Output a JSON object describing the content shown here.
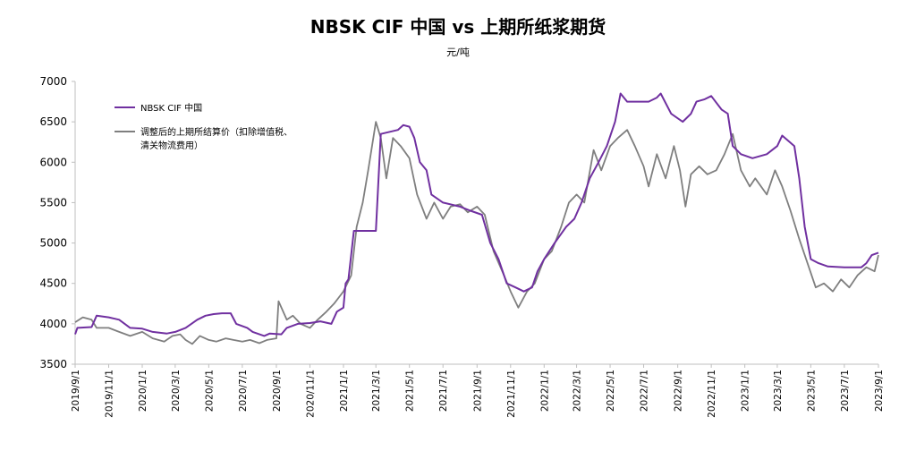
{
  "chart_data": {
    "type": "line",
    "title": "NBSK CIF 中国 vs 上期所纸浆期货",
    "unit": "元/吨",
    "ylim": [
      3500,
      7000
    ],
    "yticks": [
      "7000",
      "6500",
      "6000",
      "5500",
      "5000",
      "4500",
      "4000",
      "3500"
    ],
    "xticks": [
      "2019/9/1",
      "2019/11/1",
      "2020/1/1",
      "2020/3/1",
      "2020/5/1",
      "2020/7/1",
      "2020/9/1",
      "2020/11/1",
      "2021/1/1",
      "2021/3/1",
      "2021/5/1",
      "2021/7/1",
      "2021/9/1",
      "2021/11/1",
      "2022/1/1",
      "2022/3/1",
      "2022/5/1",
      "2022/7/1",
      "2022/9/1",
      "2022/11/1",
      "2023/1/1",
      "2023/3/1",
      "2023/5/1",
      "2023/7/1",
      "2023/9/1"
    ],
    "legend_position": "top-left",
    "series": [
      {
        "name": "NBSK CIF 中国",
        "color": "#7030A0",
        "points": [
          [
            "2019/9/1",
            3870
          ],
          [
            "2019/9/5",
            3950
          ],
          [
            "2019/10/1",
            3960
          ],
          [
            "2019/10/10",
            4100
          ],
          [
            "2019/11/1",
            4080
          ],
          [
            "2019/11/20",
            4050
          ],
          [
            "2019/12/10",
            3950
          ],
          [
            "2020/1/1",
            3940
          ],
          [
            "2020/1/20",
            3900
          ],
          [
            "2020/2/15",
            3880
          ],
          [
            "2020/3/1",
            3900
          ],
          [
            "2020/3/20",
            3950
          ],
          [
            "2020/4/10",
            4050
          ],
          [
            "2020/4/25",
            4100
          ],
          [
            "2020/5/10",
            4120
          ],
          [
            "2020/5/25",
            4130
          ],
          [
            "2020/6/10",
            4130
          ],
          [
            "2020/6/20",
            4000
          ],
          [
            "2020/7/10",
            3950
          ],
          [
            "2020/7/20",
            3900
          ],
          [
            "2020/8/10",
            3850
          ],
          [
            "2020/8/20",
            3880
          ],
          [
            "2020/9/10",
            3870
          ],
          [
            "2020/9/20",
            3950
          ],
          [
            "2020/10/10",
            4000
          ],
          [
            "2020/11/1",
            4010
          ],
          [
            "2020/11/20",
            4030
          ],
          [
            "2020/12/10",
            4000
          ],
          [
            "2020/12/20",
            4150
          ],
          [
            "2021/1/1",
            4200
          ],
          [
            "2021/1/5",
            4500
          ],
          [
            "2021/1/10",
            4550
          ],
          [
            "2021/1/20",
            5150
          ],
          [
            "2021/2/20",
            5150
          ],
          [
            "2021/3/1",
            5150
          ],
          [
            "2021/3/10",
            6350
          ],
          [
            "2021/4/10",
            6400
          ],
          [
            "2021/4/20",
            6460
          ],
          [
            "2021/5/1",
            6440
          ],
          [
            "2021/5/10",
            6300
          ],
          [
            "2021/5/20",
            6000
          ],
          [
            "2021/6/1",
            5900
          ],
          [
            "2021/6/10",
            5600
          ],
          [
            "2021/7/1",
            5500
          ],
          [
            "2021/8/1",
            5450
          ],
          [
            "2021/8/20",
            5400
          ],
          [
            "2021/9/10",
            5350
          ],
          [
            "2021/9/25",
            5000
          ],
          [
            "2021/10/10",
            4800
          ],
          [
            "2021/10/25",
            4500
          ],
          [
            "2021/11/10",
            4450
          ],
          [
            "2021/11/25",
            4400
          ],
          [
            "2021/12/10",
            4450
          ],
          [
            "2021/12/20",
            4650
          ],
          [
            "2022/1/1",
            4800
          ],
          [
            "2022/1/20",
            5000
          ],
          [
            "2022/2/10",
            5200
          ],
          [
            "2022/2/25",
            5300
          ],
          [
            "2022/3/10",
            5500
          ],
          [
            "2022/3/25",
            5800
          ],
          [
            "2022/4/10",
            6000
          ],
          [
            "2022/4/25",
            6200
          ],
          [
            "2022/5/10",
            6500
          ],
          [
            "2022/5/20",
            6850
          ],
          [
            "2022/6/1",
            6750
          ],
          [
            "2022/6/20",
            6750
          ],
          [
            "2022/7/10",
            6750
          ],
          [
            "2022/7/25",
            6800
          ],
          [
            "2022/8/1",
            6850
          ],
          [
            "2022/8/20",
            6600
          ],
          [
            "2022/9/10",
            6500
          ],
          [
            "2022/9/25",
            6600
          ],
          [
            "2022/10/5",
            6750
          ],
          [
            "2022/10/20",
            6780
          ],
          [
            "2022/11/1",
            6820
          ],
          [
            "2022/11/20",
            6650
          ],
          [
            "2022/12/1",
            6600
          ],
          [
            "2022/12/10",
            6200
          ],
          [
            "2022/12/25",
            6100
          ],
          [
            "2023/1/15",
            6050
          ],
          [
            "2023/2/10",
            6100
          ],
          [
            "2023/3/1",
            6200
          ],
          [
            "2023/3/10",
            6330
          ],
          [
            "2023/4/1",
            6200
          ],
          [
            "2023/4/10",
            5800
          ],
          [
            "2023/4/20",
            5200
          ],
          [
            "2023/5/1",
            4800
          ],
          [
            "2023/5/15",
            4750
          ],
          [
            "2023/6/1",
            4710
          ],
          [
            "2023/7/1",
            4700
          ],
          [
            "2023/8/1",
            4700
          ],
          [
            "2023/8/10",
            4750
          ],
          [
            "2023/8/20",
            4850
          ],
          [
            "2023/9/1",
            4880
          ]
        ]
      },
      {
        "name": "调整后的上期所结算价（扣除增值税、清关物流费用）",
        "color": "#7f7f7f",
        "points": [
          [
            "2019/9/1",
            4020
          ],
          [
            "2019/9/15",
            4080
          ],
          [
            "2019/10/1",
            4050
          ],
          [
            "2019/10/10",
            3950
          ],
          [
            "2019/11/1",
            3950
          ],
          [
            "2019/11/20",
            3900
          ],
          [
            "2019/12/10",
            3850
          ],
          [
            "2020/1/1",
            3900
          ],
          [
            "2020/1/20",
            3820
          ],
          [
            "2020/2/10",
            3780
          ],
          [
            "2020/2/25",
            3850
          ],
          [
            "2020/3/10",
            3870
          ],
          [
            "2020/3/20",
            3800
          ],
          [
            "2020/4/1",
            3750
          ],
          [
            "2020/4/15",
            3850
          ],
          [
            "2020/5/1",
            3800
          ],
          [
            "2020/5/15",
            3780
          ],
          [
            "2020/6/1",
            3820
          ],
          [
            "2020/6/15",
            3800
          ],
          [
            "2020/7/1",
            3780
          ],
          [
            "2020/7/15",
            3800
          ],
          [
            "2020/8/1",
            3760
          ],
          [
            "2020/8/15",
            3800
          ],
          [
            "2020/9/1",
            3820
          ],
          [
            "2020/9/5",
            4280
          ],
          [
            "2020/9/20",
            4050
          ],
          [
            "2020/10/1",
            4100
          ],
          [
            "2020/10/15",
            4000
          ],
          [
            "2020/11/1",
            3950
          ],
          [
            "2020/11/15",
            4050
          ],
          [
            "2020/12/1",
            4150
          ],
          [
            "2020/12/15",
            4250
          ],
          [
            "2021/1/1",
            4400
          ],
          [
            "2021/1/15",
            4600
          ],
          [
            "2021/1/25",
            5200
          ],
          [
            "2021/2/5",
            5500
          ],
          [
            "2021/2/15",
            5900
          ],
          [
            "2021/3/1",
            6500
          ],
          [
            "2021/3/10",
            6300
          ],
          [
            "2021/3/20",
            5800
          ],
          [
            "2021/4/1",
            6300
          ],
          [
            "2021/4/15",
            6200
          ],
          [
            "2021/5/1",
            6050
          ],
          [
            "2021/5/15",
            5600
          ],
          [
            "2021/6/1",
            5300
          ],
          [
            "2021/6/15",
            5500
          ],
          [
            "2021/7/1",
            5300
          ],
          [
            "2021/7/15",
            5450
          ],
          [
            "2021/8/1",
            5480
          ],
          [
            "2021/8/15",
            5380
          ],
          [
            "2021/9/1",
            5450
          ],
          [
            "2021/9/15",
            5350
          ],
          [
            "2021/10/1",
            4900
          ],
          [
            "2021/10/20",
            4600
          ],
          [
            "2021/11/1",
            4400
          ],
          [
            "2021/11/15",
            4200
          ],
          [
            "2021/12/1",
            4400
          ],
          [
            "2021/12/15",
            4500
          ],
          [
            "2022/1/1",
            4800
          ],
          [
            "2022/1/15",
            4900
          ],
          [
            "2022/2/1",
            5200
          ],
          [
            "2022/2/15",
            5500
          ],
          [
            "2022/3/1",
            5600
          ],
          [
            "2022/3/15",
            5500
          ],
          [
            "2022/4/1",
            6150
          ],
          [
            "2022/4/15",
            5900
          ],
          [
            "2022/5/1",
            6200
          ],
          [
            "2022/5/15",
            6300
          ],
          [
            "2022/6/1",
            6400
          ],
          [
            "2022/6/15",
            6200
          ],
          [
            "2022/7/1",
            5950
          ],
          [
            "2022/7/10",
            5700
          ],
          [
            "2022/7/25",
            6100
          ],
          [
            "2022/8/10",
            5800
          ],
          [
            "2022/8/25",
            6200
          ],
          [
            "2022/9/5",
            5900
          ],
          [
            "2022/9/15",
            5450
          ],
          [
            "2022/9/25",
            5850
          ],
          [
            "2022/10/10",
            5950
          ],
          [
            "2022/10/25",
            5850
          ],
          [
            "2022/11/10",
            5900
          ],
          [
            "2022/11/25",
            6100
          ],
          [
            "2022/12/10",
            6350
          ],
          [
            "2022/12/25",
            5900
          ],
          [
            "2023/1/10",
            5700
          ],
          [
            "2023/1/20",
            5800
          ],
          [
            "2023/2/10",
            5600
          ],
          [
            "2023/2/25",
            5900
          ],
          [
            "2023/3/10",
            5700
          ],
          [
            "2023/3/25",
            5400
          ],
          [
            "2023/4/10",
            5050
          ],
          [
            "2023/4/25",
            4750
          ],
          [
            "2023/5/10",
            4450
          ],
          [
            "2023/5/25",
            4500
          ],
          [
            "2023/6/10",
            4400
          ],
          [
            "2023/6/25",
            4550
          ],
          [
            "2023/7/10",
            4450
          ],
          [
            "2023/7/25",
            4600
          ],
          [
            "2023/8/10",
            4700
          ],
          [
            "2023/8/25",
            4650
          ],
          [
            "2023/9/1",
            4850
          ]
        ]
      }
    ]
  }
}
